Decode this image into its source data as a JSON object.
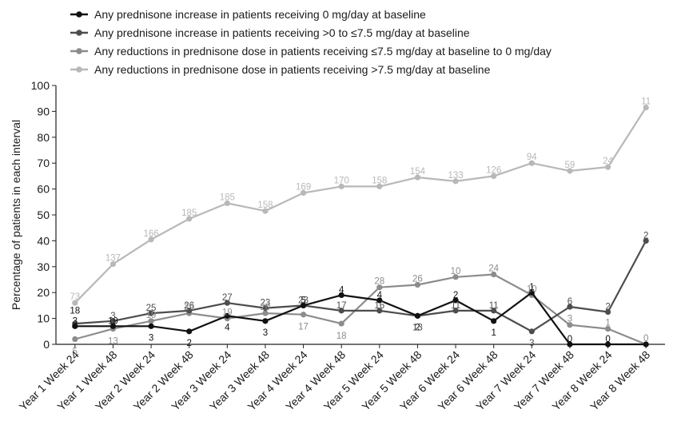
{
  "chart_data": {
    "type": "line",
    "title": "",
    "xlabel": "",
    "ylabel": "Percentage of patients in each interval",
    "ylim": [
      0,
      100
    ],
    "yticks": [
      0,
      10,
      20,
      30,
      40,
      50,
      60,
      70,
      80,
      90,
      100
    ],
    "grid": false,
    "legend_position": "top-left",
    "categories": [
      "Year 1 Week 24",
      "Year 1 Week 48",
      "Year 2 Week 24",
      "Year 2 Week 48",
      "Year 3 Week 24",
      "Year 3 Week 48",
      "Year 4 Week 24",
      "Year 4 Week 48",
      "Year 5 Week 24",
      "Year 5 Week 48",
      "Year 6 Week 24",
      "Year 6 Week 48",
      "Year 7 Week 24",
      "Year 7 Week 48",
      "Year 8 Week 24",
      "Year 8 Week 48"
    ],
    "series": [
      {
        "name": "Any prednisone increase in patients receiving 0 mg/day at baseline",
        "color": "#111111",
        "values": [
          7,
          7,
          7,
          5,
          11,
          9,
          15,
          19,
          17,
          11,
          17,
          9,
          20,
          0,
          0,
          0
        ],
        "labels": [
          "3",
          "19",
          "3",
          "2",
          "4",
          "3",
          "5",
          "4",
          "4",
          "2",
          "2",
          "1",
          "1",
          "0",
          "0",
          ""
        ]
      },
      {
        "name": "Any prednisone increase in patients receiving >0 to ≤7.5 mg/day at baseline",
        "color": "#4d4d4d",
        "values": [
          8,
          9,
          12,
          13,
          16,
          14,
          15,
          13,
          13,
          11,
          13,
          13,
          5,
          14.5,
          12.5,
          40
        ],
        "labels": [
          "",
          "3",
          "25",
          "26",
          "27",
          "23",
          "23",
          "17",
          "16",
          "13",
          "11",
          "11",
          "3",
          "6",
          "2",
          "2"
        ]
      },
      {
        "name": "Any reductions in prednisone dose in patients receiving ≤7.5 mg/day at baseline to 0 mg/day",
        "color": "#8c8c8c",
        "values": [
          2,
          6,
          9,
          12,
          10,
          12,
          11.5,
          8,
          22,
          23,
          26,
          27,
          19,
          7.5,
          6,
          0
        ],
        "labels": [
          "5",
          "13",
          "19",
          "24",
          "19",
          "20",
          "17",
          "18",
          "28",
          "26",
          "10",
          "24",
          "10",
          "3",
          "1",
          "0"
        ]
      },
      {
        "name": "Any reductions in prednisone dose in patients receiving >7.5 mg/day at baseline",
        "color": "#b8b8b8",
        "values": [
          16,
          31,
          40.5,
          48.5,
          54.5,
          51.5,
          58.5,
          61,
          61,
          64.5,
          63,
          65,
          70,
          67,
          68.5,
          91.5
        ],
        "labels": [
          "73",
          "137",
          "166",
          "185",
          "185",
          "158",
          "169",
          "170",
          "158",
          "154",
          "133",
          "126",
          "94",
          "59",
          "24",
          "11"
        ]
      }
    ],
    "extra_labels": [
      {
        "series": 0,
        "index": 0,
        "text": "18"
      }
    ]
  }
}
